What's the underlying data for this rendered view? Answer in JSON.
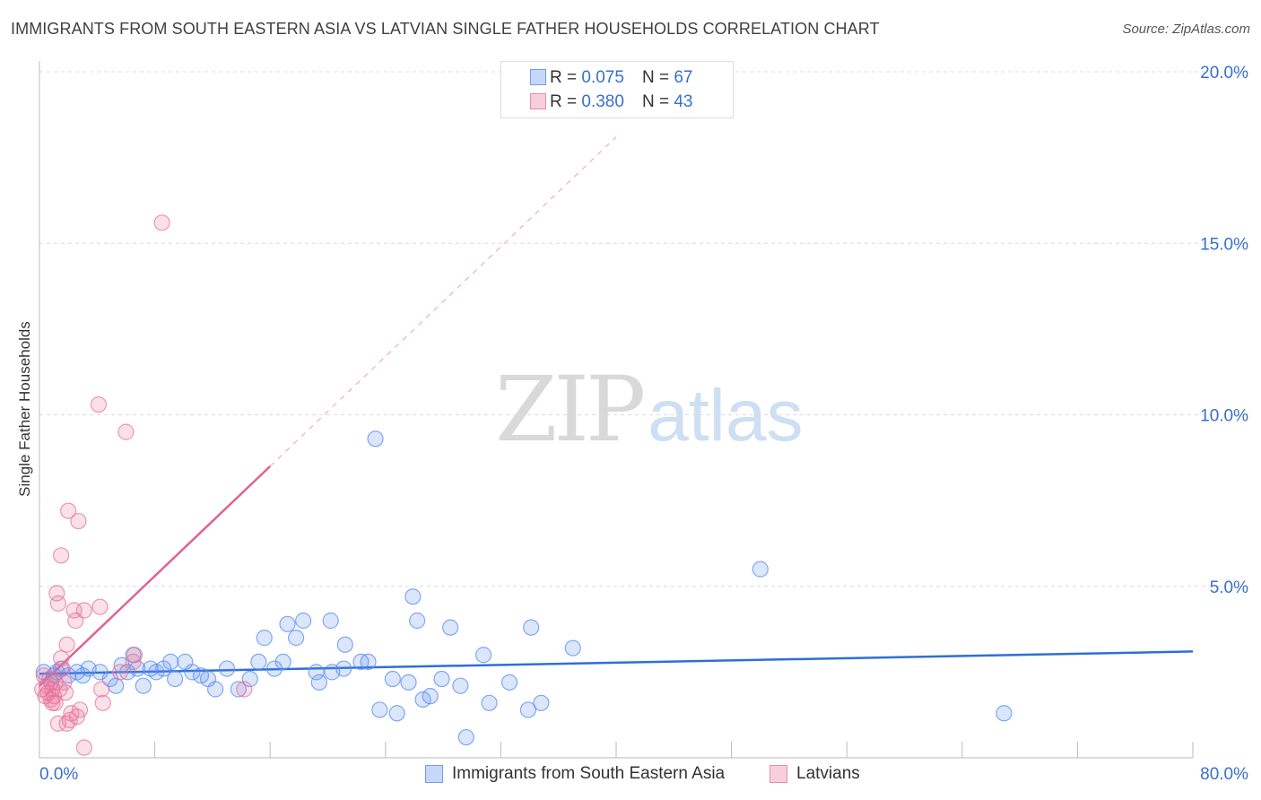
{
  "title": "IMMIGRANTS FROM SOUTH EASTERN ASIA VS LATVIAN SINGLE FATHER HOUSEHOLDS CORRELATION CHART",
  "source": "Source: ZipAtlas.com",
  "watermark": {
    "zip": "ZIP",
    "atlas": "atlas"
  },
  "stats": [
    {
      "r_label": "R =",
      "r_value": "0.075",
      "n_label": "N =",
      "n_value": "67",
      "color": "#5b8def"
    },
    {
      "r_label": "R =",
      "r_value": "0.380",
      "n_label": "N =",
      "n_value": "43",
      "color": "#e8769c"
    }
  ],
  "legend": [
    {
      "label": "Immigrants from South Eastern Asia",
      "color": "#5b8def"
    },
    {
      "label": "Latvians",
      "color": "#e8769c"
    }
  ],
  "chart_data": {
    "type": "scatter",
    "title": "IMMIGRANTS FROM SOUTH EASTERN ASIA VS LATVIAN SINGLE FATHER HOUSEHOLDS CORRELATION CHART",
    "xlabel": "",
    "ylabel": "Single Father Households",
    "xlim": [
      0,
      80
    ],
    "ylim": [
      0,
      20
    ],
    "x_tick_labels": [
      "0.0%",
      "80.0%"
    ],
    "y_ticks": [
      5,
      10,
      15,
      20
    ],
    "y_tick_labels": [
      "5.0%",
      "10.0%",
      "15.0%",
      "20.0%"
    ],
    "grid": true,
    "series": [
      {
        "name": "Immigrants from South Eastern Asia",
        "color": "#5b8def",
        "points": [
          [
            0.3,
            2.5
          ],
          [
            0.8,
            2.2
          ],
          [
            1.2,
            2.5
          ],
          [
            1.5,
            2.6
          ],
          [
            2.0,
            2.4
          ],
          [
            2.6,
            2.5
          ],
          [
            3.4,
            2.6
          ],
          [
            4.2,
            2.5
          ],
          [
            4.9,
            2.3
          ],
          [
            5.3,
            2.1
          ],
          [
            5.7,
            2.7
          ],
          [
            6.1,
            2.5
          ],
          [
            6.5,
            3.0
          ],
          [
            6.8,
            2.6
          ],
          [
            7.2,
            2.1
          ],
          [
            7.7,
            2.6
          ],
          [
            8.1,
            2.5
          ],
          [
            8.6,
            2.6
          ],
          [
            9.1,
            2.8
          ],
          [
            9.4,
            2.3
          ],
          [
            10.1,
            2.8
          ],
          [
            10.6,
            2.5
          ],
          [
            11.2,
            2.4
          ],
          [
            11.7,
            2.3
          ],
          [
            12.2,
            2.0
          ],
          [
            13.0,
            2.6
          ],
          [
            13.8,
            2.0
          ],
          [
            14.6,
            2.3
          ],
          [
            15.2,
            2.8
          ],
          [
            15.6,
            3.5
          ],
          [
            16.3,
            2.6
          ],
          [
            16.9,
            2.8
          ],
          [
            17.2,
            3.9
          ],
          [
            17.8,
            3.5
          ],
          [
            18.3,
            4.0
          ],
          [
            19.2,
            2.5
          ],
          [
            19.4,
            2.2
          ],
          [
            20.2,
            4.0
          ],
          [
            20.3,
            2.5
          ],
          [
            21.1,
            2.6
          ],
          [
            21.2,
            3.3
          ],
          [
            22.3,
            2.8
          ],
          [
            22.8,
            2.8
          ],
          [
            23.3,
            9.3
          ],
          [
            23.6,
            1.4
          ],
          [
            24.5,
            2.3
          ],
          [
            24.8,
            1.3
          ],
          [
            25.6,
            2.2
          ],
          [
            25.9,
            4.7
          ],
          [
            26.2,
            4.0
          ],
          [
            26.6,
            1.7
          ],
          [
            27.1,
            1.8
          ],
          [
            27.9,
            2.3
          ],
          [
            28.5,
            3.8
          ],
          [
            29.2,
            2.1
          ],
          [
            29.6,
            0.6
          ],
          [
            30.8,
            3.0
          ],
          [
            31.2,
            1.6
          ],
          [
            32.6,
            2.2
          ],
          [
            33.9,
            1.4
          ],
          [
            34.1,
            3.8
          ],
          [
            34.8,
            1.6
          ],
          [
            37.0,
            3.2
          ],
          [
            50.0,
            5.5
          ],
          [
            66.9,
            1.3
          ],
          [
            1.0,
            2.4
          ],
          [
            3.0,
            2.4
          ]
        ]
      },
      {
        "name": "Latvians",
        "color": "#e8769c",
        "points": [
          [
            0.2,
            2.0
          ],
          [
            0.4,
            1.8
          ],
          [
            0.5,
            2.1
          ],
          [
            0.6,
            1.9
          ],
          [
            0.7,
            2.3
          ],
          [
            0.8,
            1.7
          ],
          [
            0.9,
            2.0
          ],
          [
            1.0,
            1.8
          ],
          [
            1.1,
            2.2
          ],
          [
            1.1,
            1.6
          ],
          [
            1.2,
            4.8
          ],
          [
            1.3,
            4.5
          ],
          [
            1.3,
            1.0
          ],
          [
            1.4,
            2.0
          ],
          [
            1.5,
            2.9
          ],
          [
            1.5,
            5.9
          ],
          [
            1.6,
            2.6
          ],
          [
            1.7,
            2.2
          ],
          [
            1.8,
            1.9
          ],
          [
            1.9,
            1.0
          ],
          [
            1.9,
            3.3
          ],
          [
            2.0,
            7.2
          ],
          [
            2.1,
            1.1
          ],
          [
            2.2,
            1.3
          ],
          [
            2.4,
            4.3
          ],
          [
            2.5,
            4.0
          ],
          [
            2.6,
            1.2
          ],
          [
            2.7,
            6.9
          ],
          [
            2.8,
            1.4
          ],
          [
            3.1,
            4.3
          ],
          [
            3.1,
            0.3
          ],
          [
            4.1,
            10.3
          ],
          [
            4.2,
            4.4
          ],
          [
            4.3,
            2.0
          ],
          [
            4.4,
            1.6
          ],
          [
            5.6,
            2.5
          ],
          [
            6.0,
            9.5
          ],
          [
            6.5,
            2.8
          ],
          [
            6.6,
            3.0
          ],
          [
            8.5,
            15.6
          ],
          [
            14.2,
            2.0
          ],
          [
            0.3,
            2.4
          ],
          [
            0.9,
            1.6
          ]
        ]
      }
    ],
    "trendlines": [
      {
        "series": "Immigrants from South Eastern Asia",
        "x": [
          0,
          80
        ],
        "y": [
          2.45,
          3.1
        ],
        "style": "solid"
      },
      {
        "series": "Latvians",
        "x": [
          0,
          16
        ],
        "y": [
          2.1,
          8.5
        ],
        "style": "solid"
      },
      {
        "series": "Latvians",
        "x": [
          16,
          40
        ],
        "y": [
          8.5,
          18.1
        ],
        "style": "dashed"
      }
    ]
  }
}
